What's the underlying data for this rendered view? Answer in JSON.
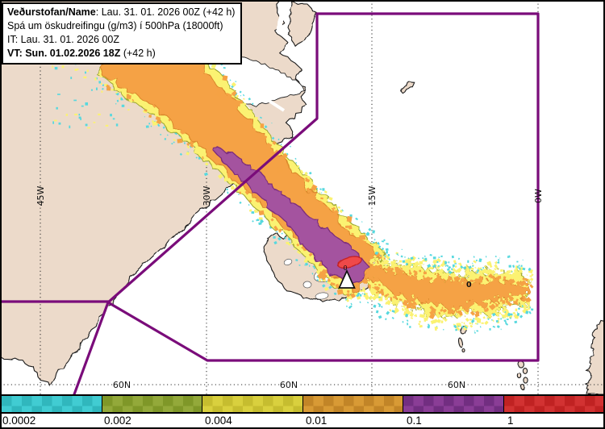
{
  "info_box": {
    "line1_label": "Veðurstofan/Name",
    "line1_value": ": Lau. 31. 01. 2026 00Z (+42 h)",
    "line2": "Spá um öskudreifingu (g/m3) í 500hPa (18000ft)",
    "line3": "IT: Lau. 31. 01. 2026 00Z",
    "line4_bold": "VT: Sun. 01.02.2026 18Z",
    "line4_rest": " (+42 h)"
  },
  "map": {
    "meridian_labels": [
      "45W",
      "30W",
      "15W",
      "0W"
    ],
    "parallel_labels": [
      "60N",
      "60N",
      "60N"
    ],
    "plume_annotation": "0",
    "volcano_annotation": "0",
    "colors": {
      "ocean": "#ffffff",
      "land": "#ecdaca",
      "coast": "#1b1b1b",
      "grid": "#2e2e2e",
      "fir_boundary": "#7a0c7a",
      "ash_trace": "#57d8de",
      "ash_low": "#fbf272",
      "ash_low_edge": "#9aa52e",
      "ash_mid": "#f5a244",
      "ash_mid_edge": "#d9862a",
      "ash_high": "#a4539f",
      "ash_high_edge": "#7c2d7c",
      "ash_extreme": "#ef4a4a",
      "ash_extreme_edge": "#c21d1d"
    }
  },
  "legend": {
    "entries": [
      {
        "label": "0.0002",
        "fill": "#41ccd2",
        "fill_alt": "#30b7bd"
      },
      {
        "label": "0.002",
        "fill": "#93a93a",
        "fill_alt": "#7f9728"
      },
      {
        "label": "0.004",
        "fill": "#d9d03e",
        "fill_alt": "#c6bd2f"
      },
      {
        "label": "0.01",
        "fill": "#d89a35",
        "fill_alt": "#c28527"
      },
      {
        "label": "0.1",
        "fill": "#8a3d96",
        "fill_alt": "#722e81"
      },
      {
        "label": "1",
        "fill": "#d23232",
        "fill_alt": "#c02222"
      }
    ]
  }
}
